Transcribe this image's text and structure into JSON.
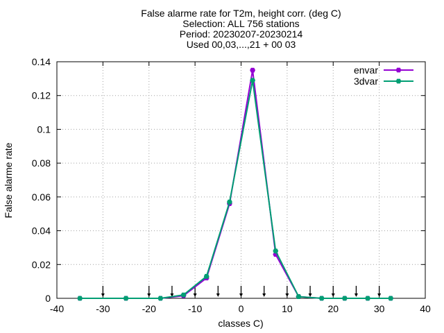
{
  "chart_data": {
    "type": "line",
    "title_lines": [
      "False alarme rate  for T2m, height corr. (deg C)",
      "Selection: ALL    756 stations",
      "Period: 20230207-20230214",
      "Used 00,03,...,21 + 00 03"
    ],
    "xlabel": "classes C)",
    "ylabel": "False alarme rate",
    "xlim": [
      -40,
      40
    ],
    "ylim": [
      0,
      0.14
    ],
    "xticks": [
      -40,
      -30,
      -20,
      -10,
      0,
      10,
      20,
      30,
      40
    ],
    "yticks": [
      0,
      0.02,
      0.04,
      0.06,
      0.08,
      0.1,
      0.12,
      0.14
    ],
    "xtick_labels": [
      "-40",
      "-30",
      "-20",
      "-10",
      "0",
      "10",
      "20",
      "30",
      "40"
    ],
    "ytick_labels": [
      "0",
      "0.02",
      "0.04",
      "0.06",
      "0.08",
      "0.1",
      "0.12",
      "0.14"
    ],
    "grid": true,
    "legend_position": "top-right",
    "series": [
      {
        "name": "envar",
        "color": "#9400d3",
        "x": [
          -35,
          -25,
          -17.5,
          -12.5,
          -7.5,
          -2.5,
          2.5,
          7.5,
          12.5,
          17.5,
          22.5,
          27.5,
          32.5
        ],
        "y": [
          0,
          0,
          0,
          0.0015,
          0.012,
          0.056,
          0.135,
          0.026,
          0.001,
          0,
          0,
          0,
          0
        ]
      },
      {
        "name": "3dvar",
        "color": "#009e73",
        "x": [
          -35,
          -25,
          -17.5,
          -12.5,
          -7.5,
          -2.5,
          2.5,
          7.5,
          12.5,
          17.5,
          22.5,
          27.5,
          32.5
        ],
        "y": [
          0,
          0,
          0,
          0.002,
          0.013,
          0.057,
          0.129,
          0.028,
          0.001,
          0,
          0,
          0,
          0
        ]
      }
    ],
    "arrow_markers_x": [
      -30,
      -20,
      -15,
      -10,
      -5,
      0,
      5,
      10,
      15,
      20,
      25,
      30
    ]
  }
}
